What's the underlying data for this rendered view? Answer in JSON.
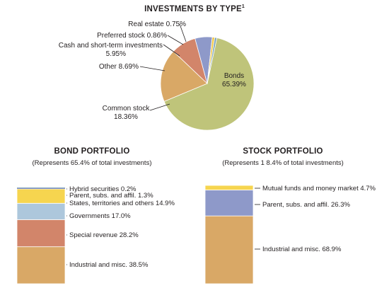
{
  "pie": {
    "title": "INVESTMENTS BY TYPE",
    "title_sup": "1",
    "chart_data": {
      "type": "pie",
      "title": "INVESTMENTS BY TYPE",
      "slices": [
        {
          "label": "Bonds",
          "value": 65.39,
          "display": "65.39%",
          "color": "#bfc47a"
        },
        {
          "label": "Common stock",
          "value": 18.36,
          "display": "18.36%",
          "color": "#d9a866"
        },
        {
          "label": "Other",
          "value": 8.69,
          "display": "8.69%",
          "color": "#d2856a"
        },
        {
          "label": "Cash and short-term investments",
          "value": 5.95,
          "display": "5.95%",
          "color": "#8e99c9"
        },
        {
          "label": "Preferred stock",
          "value": 0.86,
          "display": "0.86%",
          "color": "#f3c94a"
        },
        {
          "label": "Real estate",
          "value": 0.75,
          "display": "0.75%",
          "color": "#7fa6b8"
        }
      ]
    }
  },
  "bond": {
    "title": "BOND PORTFOLIO",
    "subtitle": "(Represents 65.4% of total investments)",
    "chart_data": {
      "type": "bar",
      "stacked": true,
      "title": "BOND PORTFOLIO",
      "segments": [
        {
          "label": "Industrial and misc.",
          "value": 38.5,
          "text": "Industrial and misc. 38.5%",
          "color": "#d9a866"
        },
        {
          "label": "Special revenue",
          "value": 28.2,
          "text": "Special revenue  28.2%",
          "color": "#d2856a"
        },
        {
          "label": "Governments",
          "value": 17.0,
          "text": "Governments 17.0%",
          "color": "#adc7dc"
        },
        {
          "label": "States, territories and others",
          "value": 14.9,
          "text": "States, territories and others 14.9%",
          "color": "#f6d54f"
        },
        {
          "label": "Parent, subs. and affil.",
          "value": 1.3,
          "text": "Parent, subs. and affil. 1.3%",
          "color": "#8e99c9"
        },
        {
          "label": "Hybrid securities",
          "value": 0.2,
          "text": "Hybrid securities 0.2%",
          "color": "#7fa6b8"
        }
      ]
    }
  },
  "stock": {
    "title": "STOCK PORTFOLIO",
    "subtitle": "(Represents 1 8.4% of total investments)",
    "chart_data": {
      "type": "bar",
      "stacked": true,
      "title": "STOCK PORTFOLIO",
      "segments": [
        {
          "label": "Industrial and misc.",
          "value": 68.9,
          "text": "Industrial and misc. 68.9%",
          "color": "#d9a866"
        },
        {
          "label": "Parent, subs. and affil.",
          "value": 26.3,
          "text": "Parent, subs. and affil. 26.3%",
          "color": "#8e99c9"
        },
        {
          "label": "Mutual funds and money market",
          "value": 4.7,
          "text": "Mutual funds and money market 4.7%",
          "color": "#f6d54f"
        }
      ]
    }
  }
}
